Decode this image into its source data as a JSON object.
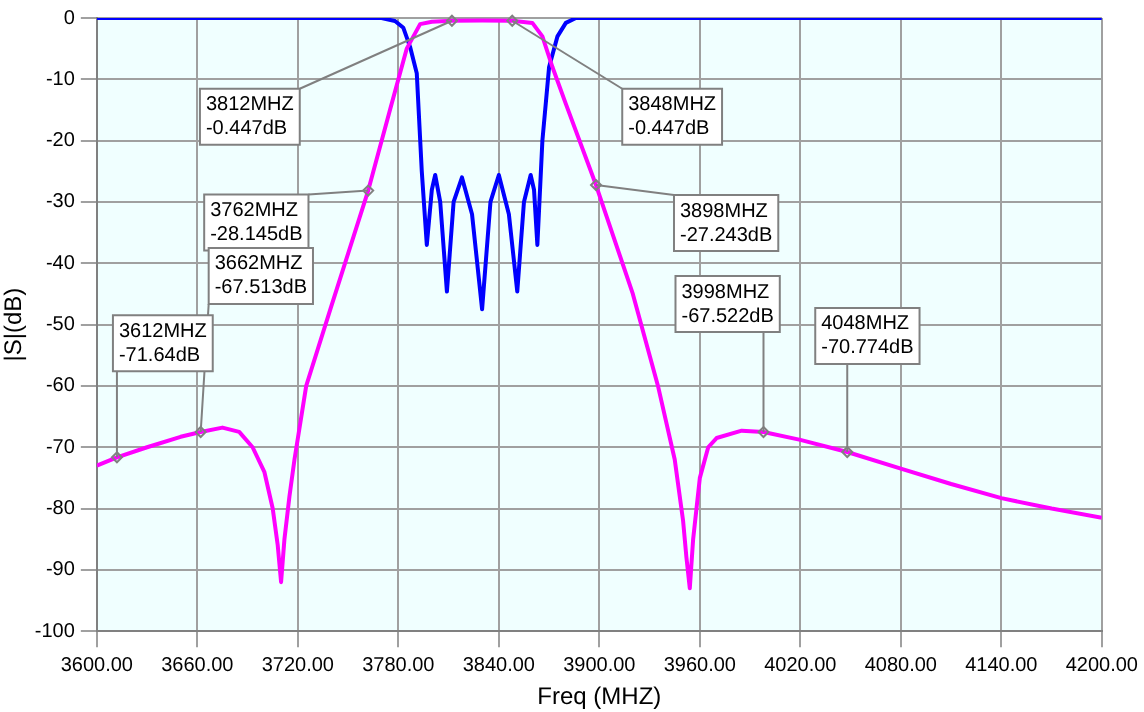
{
  "chart_data": {
    "type": "line",
    "xlabel": "Freq (MHZ)",
    "ylabel": "|S|(dB)",
    "xlim": [
      3600,
      4200
    ],
    "xticks": [
      {
        "value": 3600,
        "label": "3600.00"
      },
      {
        "value": 3660,
        "label": "3660.00"
      },
      {
        "value": 3720,
        "label": "3720.00"
      },
      {
        "value": 3780,
        "label": "3780.00"
      },
      {
        "value": 3840,
        "label": "3840.00"
      },
      {
        "value": 3900,
        "label": "3900.00"
      },
      {
        "value": 3960,
        "label": "3960.00"
      },
      {
        "value": 4020,
        "label": "4020.00"
      },
      {
        "value": 4080,
        "label": "4080.00"
      },
      {
        "value": 4140,
        "label": "4140.00"
      },
      {
        "value": 4200,
        "label": "4200.00"
      }
    ],
    "ylim": [
      -100,
      0
    ],
    "yticks": [
      -100,
      -90,
      -80,
      -70,
      -60,
      -50,
      -40,
      -30,
      -20,
      -10,
      0
    ],
    "grid": true,
    "legend": false,
    "marker": "none",
    "line_style": "solid",
    "series": [
      {
        "color": "#ff00ff",
        "x": [
          3600,
          3612,
          3630,
          3650,
          3662,
          3675,
          3685,
          3693,
          3700,
          3705,
          3708,
          3710,
          3712,
          3715,
          3718,
          3725,
          3740,
          3762,
          3775,
          3785,
          3793,
          3800,
          3812,
          3830,
          3848,
          3860,
          3866,
          3872,
          3880,
          3898,
          3920,
          3935,
          3945,
          3950,
          3952,
          3954,
          3956,
          3960,
          3965,
          3970,
          3985,
          3998,
          4020,
          4048,
          4080,
          4110,
          4140,
          4170,
          4200
        ],
        "values": [
          -73,
          -71.64,
          -70,
          -68.3,
          -67.513,
          -66.8,
          -67.5,
          -70,
          -74,
          -80,
          -86,
          -92,
          -85,
          -78,
          -72,
          -60,
          -47,
          -28.145,
          -15,
          -5,
          -1,
          -0.6,
          -0.447,
          -0.4,
          -0.447,
          -0.8,
          -3,
          -8,
          -14,
          -27.243,
          -45,
          -60,
          -72,
          -82,
          -88,
          -93,
          -85,
          -75,
          -70,
          -68.5,
          -67.3,
          -67.522,
          -68.8,
          -70.774,
          -73.5,
          -76,
          -78.3,
          -80,
          -81.5
        ]
      },
      {
        "color": "#0000ff",
        "x": [
          3600,
          3700,
          3770,
          3778,
          3783,
          3787,
          3791,
          3794,
          3797,
          3800,
          3802,
          3805,
          3809,
          3813,
          3818,
          3824,
          3830,
          3835,
          3840,
          3846,
          3851,
          3855,
          3859,
          3861,
          3863,
          3866,
          3870,
          3875,
          3880,
          3886,
          3900,
          4000,
          4200
        ],
        "values": [
          0,
          0,
          0,
          -0.5,
          -1.6,
          -4.7,
          -9,
          -25,
          -37,
          -28,
          -25.6,
          -30,
          -44.6,
          -30,
          -26,
          -32,
          -47.5,
          -30,
          -25.6,
          -32,
          -44.6,
          -30,
          -25.6,
          -28,
          -37,
          -20,
          -8,
          -3,
          -0.8,
          0,
          0,
          0,
          0
        ]
      }
    ],
    "annotations": [
      {
        "text": "3812MHZ\n-0.447dB",
        "x": 3812,
        "y": -0.447
      },
      {
        "text": "3848MHZ\n-0.447dB",
        "x": 3848,
        "y": -0.447
      },
      {
        "text": "3762MHZ\n-28.145dB",
        "x": 3762,
        "y": -28.145
      },
      {
        "text": "3662MHZ\n-67.513dB",
        "x": 3662,
        "y": -67.513
      },
      {
        "text": "3612MHZ\n-71.64dB",
        "x": 3612,
        "y": -71.64
      },
      {
        "text": "3898MHZ\n-27.243dB",
        "x": 3898,
        "y": -27.243
      },
      {
        "text": "3998MHZ\n-67.522dB",
        "x": 3998,
        "y": -67.522
      },
      {
        "text": "4048MHZ\n-70.774dB",
        "x": 4048,
        "y": -70.774
      }
    ]
  }
}
